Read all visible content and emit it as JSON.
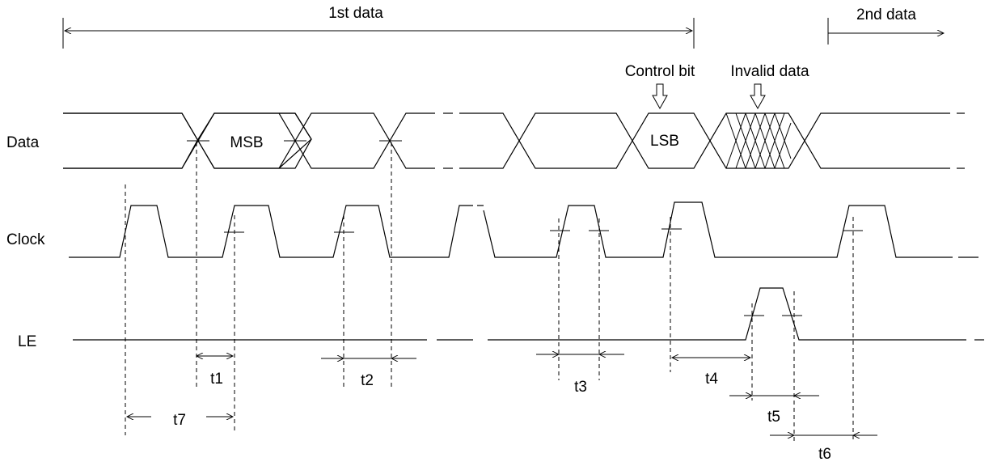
{
  "header": {
    "first_data": "1st data",
    "second_data": "2nd data"
  },
  "annotations": {
    "control_bit": "Control bit",
    "invalid_data": "Invalid data"
  },
  "signals": {
    "data": "Data",
    "clock": "Clock",
    "le": "LE"
  },
  "bits": {
    "msb": "MSB",
    "lsb": "LSB"
  },
  "timings": {
    "t1": "t1",
    "t2": "t2",
    "t3": "t3",
    "t4": "t4",
    "t5": "t5",
    "t6": "t6",
    "t7": "t7"
  }
}
